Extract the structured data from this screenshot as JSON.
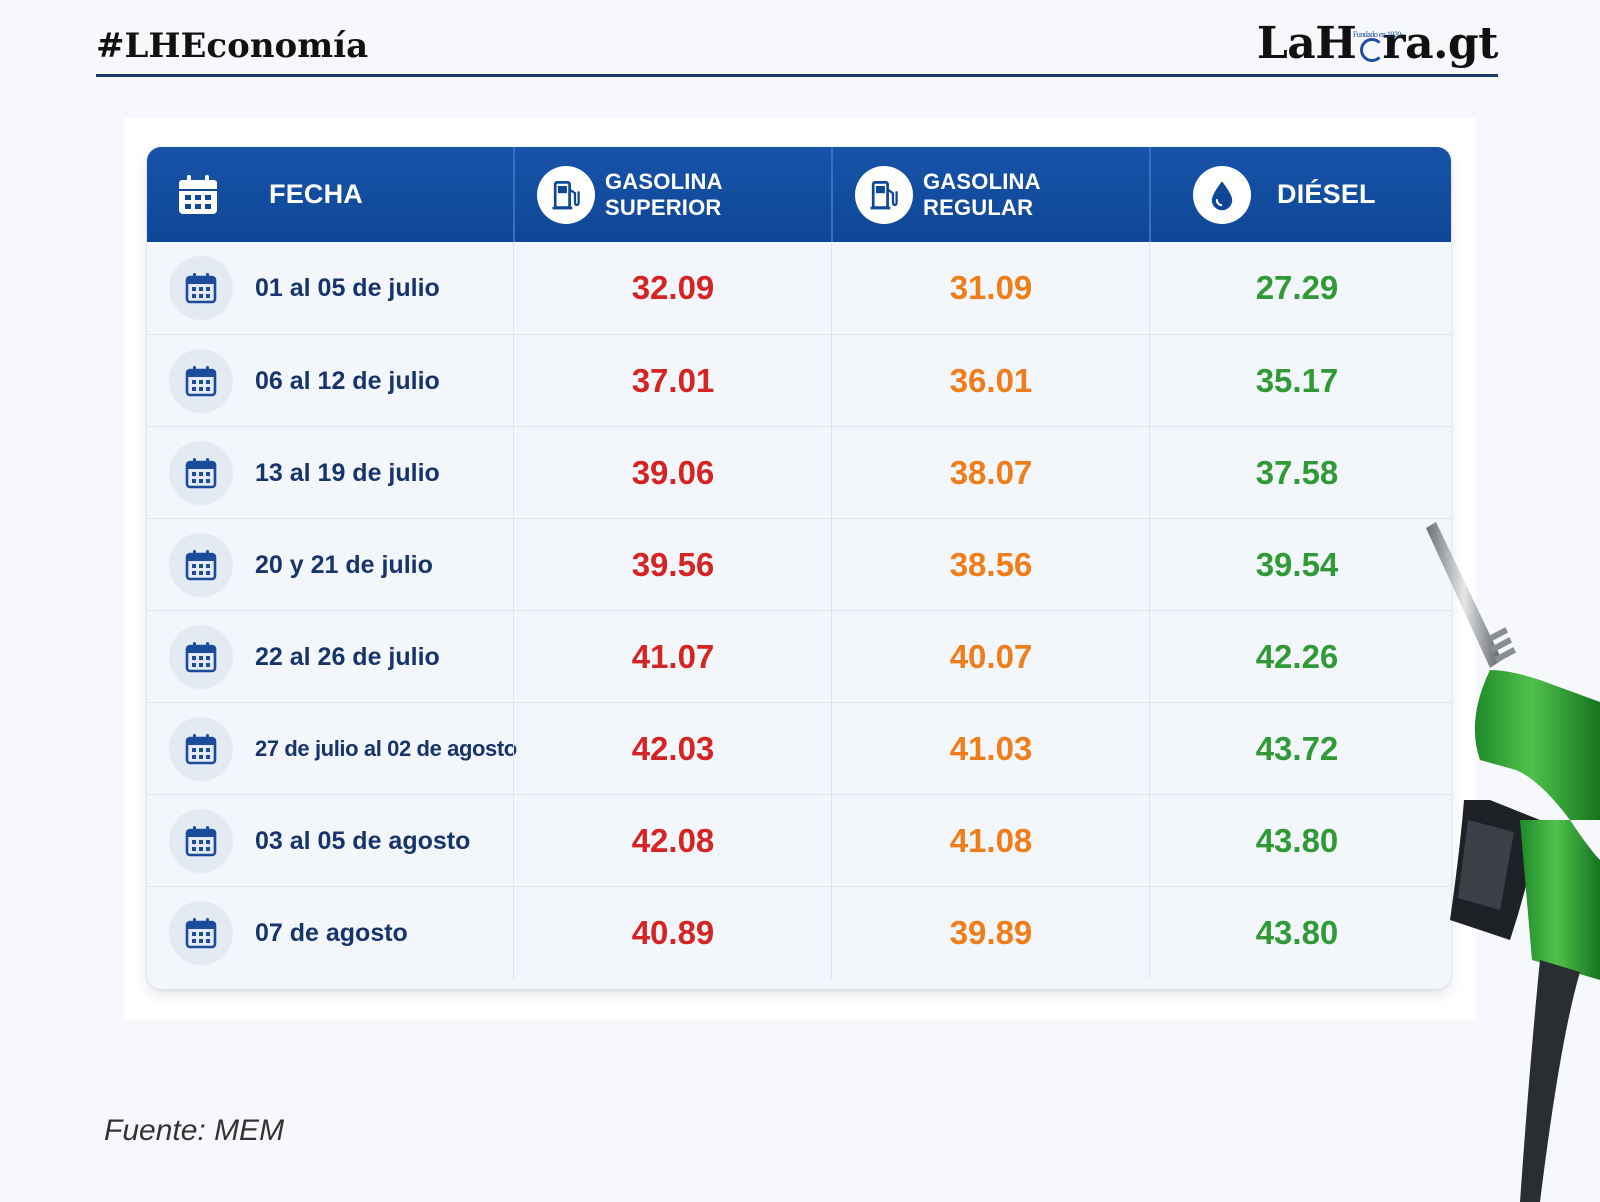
{
  "header": {
    "hashtag": "#LHEconomía",
    "brand_left": "LaH",
    "brand_right": "ra.gt",
    "brand_tag": "Fundado en 1920"
  },
  "table": {
    "columns": [
      {
        "label": "FECHA",
        "icon": "calendar-icon"
      },
      {
        "label": "GASOLINA SUPERIOR",
        "icon": "fuel-pump-icon"
      },
      {
        "label": "GASOLINA REGULAR",
        "icon": "fuel-pump-icon"
      },
      {
        "label": "DIÉSEL",
        "icon": "droplet-icon"
      }
    ],
    "rows": [
      {
        "fecha": "01 al 05 de julio",
        "superior": "32.09",
        "regular": "31.09",
        "diesel": "27.29"
      },
      {
        "fecha": "06 al 12 de julio",
        "superior": "37.01",
        "regular": "36.01",
        "diesel": "35.17"
      },
      {
        "fecha": "13 al 19 de julio",
        "superior": "39.06",
        "regular": "38.07",
        "diesel": "37.58"
      },
      {
        "fecha": "20 y 21 de julio",
        "superior": "39.56",
        "regular": "38.56",
        "diesel": "39.54"
      },
      {
        "fecha": "22 al 26 de julio",
        "superior": "41.07",
        "regular": "40.07",
        "diesel": "42.26"
      },
      {
        "fecha": "27 de julio al 02 de agosto",
        "superior": "42.03",
        "regular": "41.03",
        "diesel": "43.72"
      },
      {
        "fecha": "03 al 05 de agosto",
        "superior": "42.08",
        "regular": "41.08",
        "diesel": "43.80"
      },
      {
        "fecha": "07 de agosto",
        "superior": "40.89",
        "regular": "39.89",
        "diesel": "43.80"
      }
    ]
  },
  "footer": {
    "source": "Fuente: MEM"
  },
  "colors": {
    "header_blue": "#0f4797",
    "superior": "#d42424",
    "regular": "#ef7d1a",
    "diesel": "#2f9a36",
    "date_text": "#17346b"
  }
}
